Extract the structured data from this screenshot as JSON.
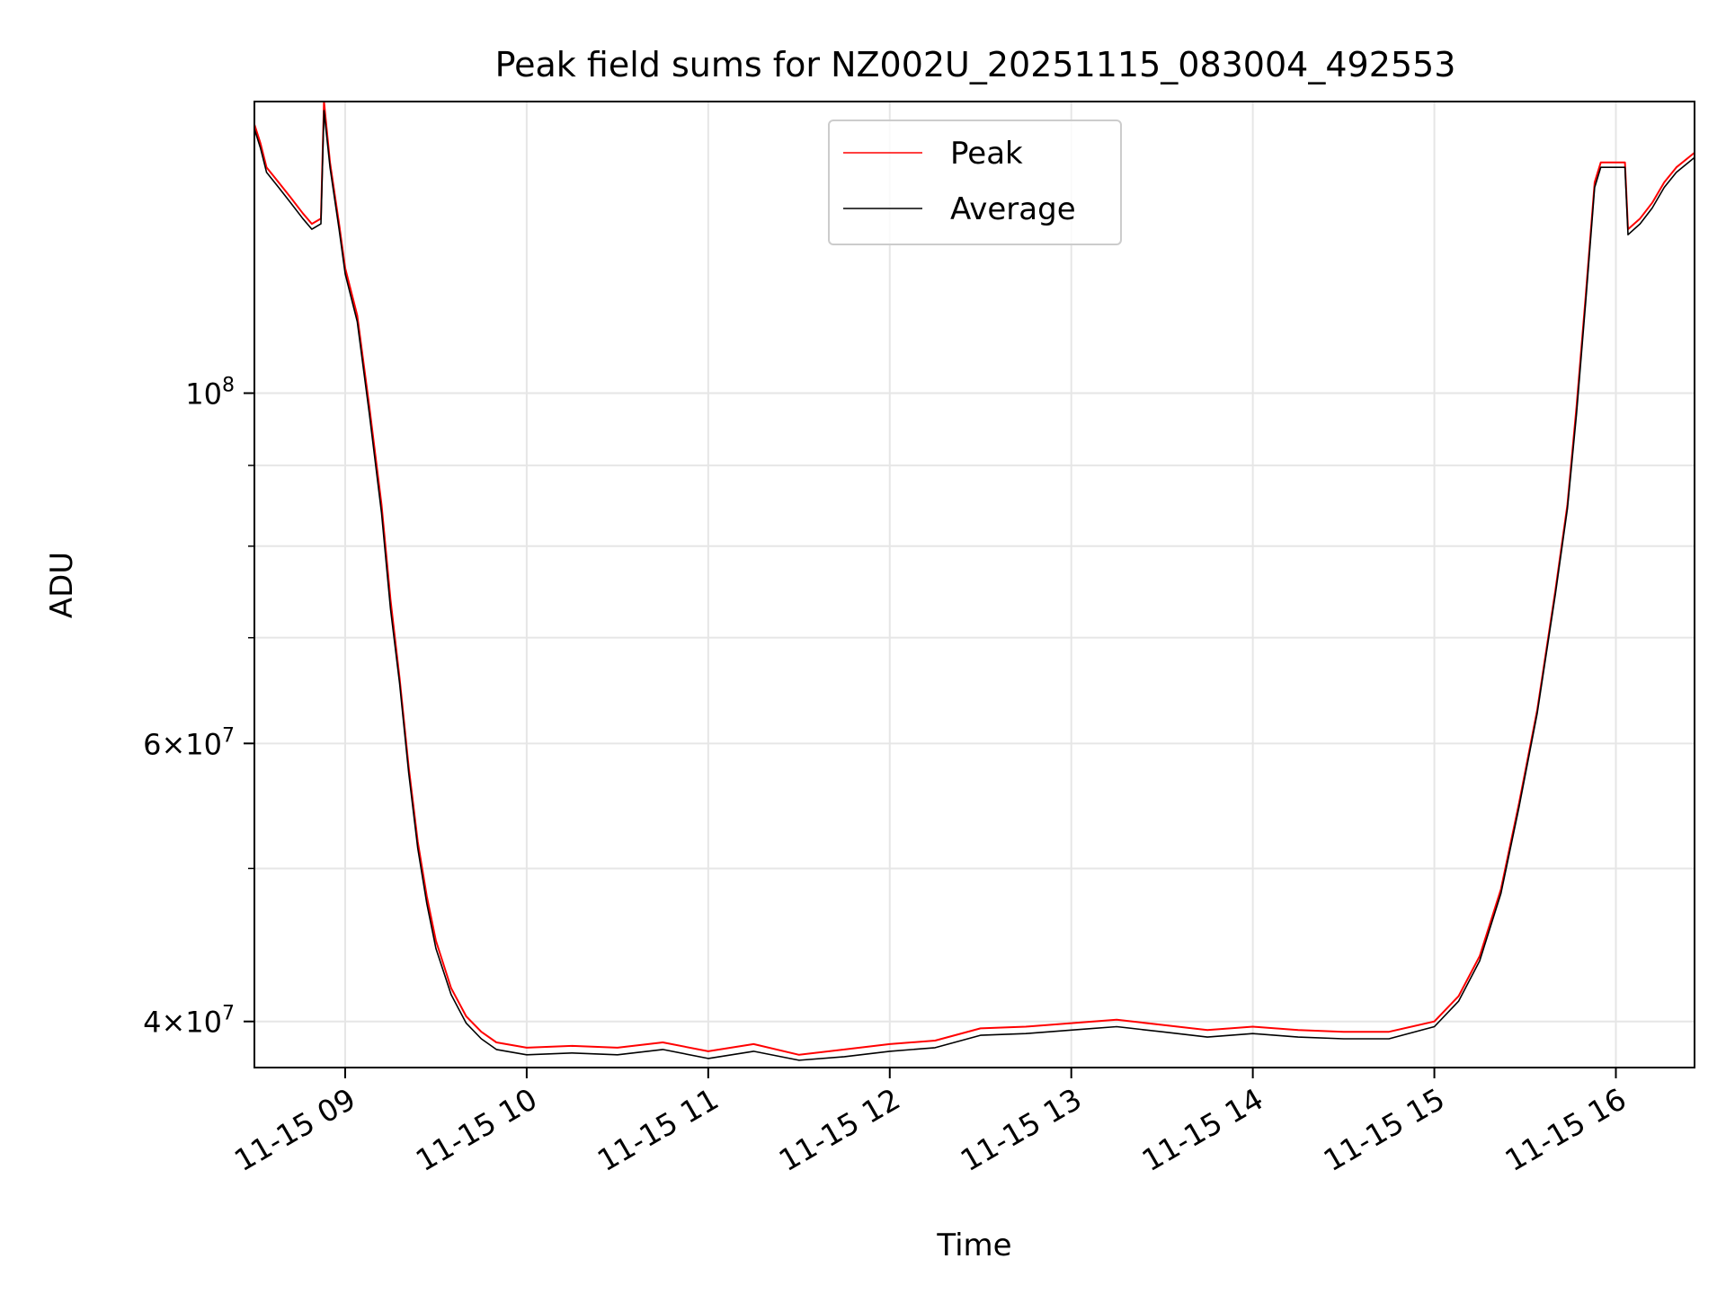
{
  "chart_data": {
    "type": "line",
    "title": "Peak field sums for NZ002U_20251115_083004_492553",
    "xlabel": "Time",
    "ylabel": "ADU",
    "yscale": "log",
    "xlim": [
      "2025-11-15 08:30",
      "2025-11-15 16:26"
    ],
    "ylim": [
      37400000,
      153000000
    ],
    "x_ticks": [
      {
        "label": "11-15 09",
        "time": "2025-11-15 09:00"
      },
      {
        "label": "11-15 10",
        "time": "2025-11-15 10:00"
      },
      {
        "label": "11-15 11",
        "time": "2025-11-15 11:00"
      },
      {
        "label": "11-15 12",
        "time": "2025-11-15 12:00"
      },
      {
        "label": "11-15 13",
        "time": "2025-11-15 13:00"
      },
      {
        "label": "11-15 14",
        "time": "2025-11-15 14:00"
      },
      {
        "label": "11-15 15",
        "time": "2025-11-15 15:00"
      },
      {
        "label": "11-15 16",
        "time": "2025-11-15 16:00"
      }
    ],
    "y_major_ticks": [
      {
        "mantissa": "",
        "exponent": "8",
        "base": "10",
        "value": 100000000
      },
      {
        "mantissa": "6",
        "exponent": "7",
        "base": "10",
        "value": 60000000
      },
      {
        "mantissa": "4",
        "exponent": "7",
        "base": "10",
        "value": 40000000
      }
    ],
    "y_minor_gridlines": [
      50000000,
      70000000,
      80000000,
      90000000
    ],
    "grid": true,
    "legend": {
      "position": "upper center",
      "entries": [
        "Peak",
        "Average"
      ]
    },
    "series": [
      {
        "name": "Peak",
        "color": "#ff0000",
        "points": [
          [
            "2025-11-15 08:30",
            148000000
          ],
          [
            "2025-11-15 08:32",
            144000000
          ],
          [
            "2025-11-15 08:34",
            139000000
          ],
          [
            "2025-11-15 08:38",
            136000000
          ],
          [
            "2025-11-15 08:42",
            133000000
          ],
          [
            "2025-11-15 08:46",
            130000000
          ],
          [
            "2025-11-15 08:49",
            128000000
          ],
          [
            "2025-11-15 08:52",
            129000000
          ],
          [
            "2025-11-15 08:53",
            153000000
          ],
          [
            "2025-11-15 08:55",
            140000000
          ],
          [
            "2025-11-15 08:58",
            128000000
          ],
          [
            "2025-11-15 09:00",
            120000000
          ],
          [
            "2025-11-15 09:04",
            112000000
          ],
          [
            "2025-11-15 09:08",
            98000000
          ],
          [
            "2025-11-15 09:12",
            85000000
          ],
          [
            "2025-11-15 09:15",
            74000000
          ],
          [
            "2025-11-15 09:18",
            66000000
          ],
          [
            "2025-11-15 09:21",
            58000000
          ],
          [
            "2025-11-15 09:24",
            52000000
          ],
          [
            "2025-11-15 09:27",
            48000000
          ],
          [
            "2025-11-15 09:30",
            45000000
          ],
          [
            "2025-11-15 09:35",
            42000000
          ],
          [
            "2025-11-15 09:40",
            40300000
          ],
          [
            "2025-11-15 09:45",
            39400000
          ],
          [
            "2025-11-15 09:50",
            38800000
          ],
          [
            "2025-11-15 10:00",
            38500000
          ],
          [
            "2025-11-15 10:15",
            38600000
          ],
          [
            "2025-11-15 10:30",
            38500000
          ],
          [
            "2025-11-15 10:45",
            38800000
          ],
          [
            "2025-11-15 11:00",
            38300000
          ],
          [
            "2025-11-15 11:15",
            38700000
          ],
          [
            "2025-11-15 11:30",
            38100000
          ],
          [
            "2025-11-15 11:45",
            38400000
          ],
          [
            "2025-11-15 12:00",
            38700000
          ],
          [
            "2025-11-15 12:15",
            38900000
          ],
          [
            "2025-11-15 12:30",
            39600000
          ],
          [
            "2025-11-15 12:45",
            39700000
          ],
          [
            "2025-11-15 13:00",
            39900000
          ],
          [
            "2025-11-15 13:15",
            40100000
          ],
          [
            "2025-11-15 13:30",
            39800000
          ],
          [
            "2025-11-15 13:45",
            39500000
          ],
          [
            "2025-11-15 14:00",
            39700000
          ],
          [
            "2025-11-15 14:15",
            39500000
          ],
          [
            "2025-11-15 14:30",
            39400000
          ],
          [
            "2025-11-15 14:45",
            39400000
          ],
          [
            "2025-11-15 15:00",
            40000000
          ],
          [
            "2025-11-15 15:08",
            41500000
          ],
          [
            "2025-11-15 15:15",
            44000000
          ],
          [
            "2025-11-15 15:22",
            48500000
          ],
          [
            "2025-11-15 15:28",
            55000000
          ],
          [
            "2025-11-15 15:34",
            63000000
          ],
          [
            "2025-11-15 15:40",
            75000000
          ],
          [
            "2025-11-15 15:44",
            85000000
          ],
          [
            "2025-11-15 15:47",
            98000000
          ],
          [
            "2025-11-15 15:50",
            115000000
          ],
          [
            "2025-11-15 15:53",
            136000000
          ],
          [
            "2025-11-15 15:55",
            140000000
          ],
          [
            "2025-11-15 16:03",
            140000000
          ],
          [
            "2025-11-15 16:04",
            127000000
          ],
          [
            "2025-11-15 16:08",
            129000000
          ],
          [
            "2025-11-15 16:12",
            132000000
          ],
          [
            "2025-11-15 16:16",
            136000000
          ],
          [
            "2025-11-15 16:20",
            139000000
          ],
          [
            "2025-11-15 16:26",
            142000000
          ]
        ]
      },
      {
        "name": "Average",
        "color": "#000000",
        "points": [
          [
            "2025-11-15 08:30",
            147000000
          ],
          [
            "2025-11-15 08:32",
            143000000
          ],
          [
            "2025-11-15 08:34",
            138000000
          ],
          [
            "2025-11-15 08:38",
            135000000
          ],
          [
            "2025-11-15 08:42",
            132000000
          ],
          [
            "2025-11-15 08:46",
            129000000
          ],
          [
            "2025-11-15 08:49",
            127000000
          ],
          [
            "2025-11-15 08:52",
            128000000
          ],
          [
            "2025-11-15 08:53",
            151000000
          ],
          [
            "2025-11-15 08:55",
            139000000
          ],
          [
            "2025-11-15 08:58",
            127000000
          ],
          [
            "2025-11-15 09:00",
            119000000
          ],
          [
            "2025-11-15 09:04",
            111000000
          ],
          [
            "2025-11-15 09:08",
            97000000
          ],
          [
            "2025-11-15 09:12",
            84000000
          ],
          [
            "2025-11-15 09:15",
            73000000
          ],
          [
            "2025-11-15 09:18",
            65500000
          ],
          [
            "2025-11-15 09:21",
            57500000
          ],
          [
            "2025-11-15 09:24",
            51500000
          ],
          [
            "2025-11-15 09:27",
            47500000
          ],
          [
            "2025-11-15 09:30",
            44500000
          ],
          [
            "2025-11-15 09:35",
            41600000
          ],
          [
            "2025-11-15 09:40",
            39900000
          ],
          [
            "2025-11-15 09:45",
            39000000
          ],
          [
            "2025-11-15 09:50",
            38400000
          ],
          [
            "2025-11-15 10:00",
            38100000
          ],
          [
            "2025-11-15 10:15",
            38200000
          ],
          [
            "2025-11-15 10:30",
            38100000
          ],
          [
            "2025-11-15 10:45",
            38400000
          ],
          [
            "2025-11-15 11:00",
            37900000
          ],
          [
            "2025-11-15 11:15",
            38300000
          ],
          [
            "2025-11-15 11:30",
            37800000
          ],
          [
            "2025-11-15 11:45",
            38000000
          ],
          [
            "2025-11-15 12:00",
            38300000
          ],
          [
            "2025-11-15 12:15",
            38500000
          ],
          [
            "2025-11-15 12:30",
            39200000
          ],
          [
            "2025-11-15 12:45",
            39300000
          ],
          [
            "2025-11-15 13:00",
            39500000
          ],
          [
            "2025-11-15 13:15",
            39700000
          ],
          [
            "2025-11-15 13:30",
            39400000
          ],
          [
            "2025-11-15 13:45",
            39100000
          ],
          [
            "2025-11-15 14:00",
            39300000
          ],
          [
            "2025-11-15 14:15",
            39100000
          ],
          [
            "2025-11-15 14:30",
            39000000
          ],
          [
            "2025-11-15 14:45",
            39000000
          ],
          [
            "2025-11-15 15:00",
            39700000
          ],
          [
            "2025-11-15 15:08",
            41200000
          ],
          [
            "2025-11-15 15:15",
            43700000
          ],
          [
            "2025-11-15 15:22",
            48200000
          ],
          [
            "2025-11-15 15:28",
            54700000
          ],
          [
            "2025-11-15 15:34",
            62700000
          ],
          [
            "2025-11-15 15:40",
            74600000
          ],
          [
            "2025-11-15 15:44",
            84500000
          ],
          [
            "2025-11-15 15:47",
            97000000
          ],
          [
            "2025-11-15 15:50",
            114000000
          ],
          [
            "2025-11-15 15:53",
            135000000
          ],
          [
            "2025-11-15 15:55",
            139000000
          ],
          [
            "2025-11-15 16:03",
            139000000
          ],
          [
            "2025-11-15 16:04",
            126000000
          ],
          [
            "2025-11-15 16:08",
            128000000
          ],
          [
            "2025-11-15 16:12",
            131000000
          ],
          [
            "2025-11-15 16:16",
            135000000
          ],
          [
            "2025-11-15 16:20",
            138000000
          ],
          [
            "2025-11-15 16:26",
            141000000
          ]
        ]
      }
    ]
  }
}
